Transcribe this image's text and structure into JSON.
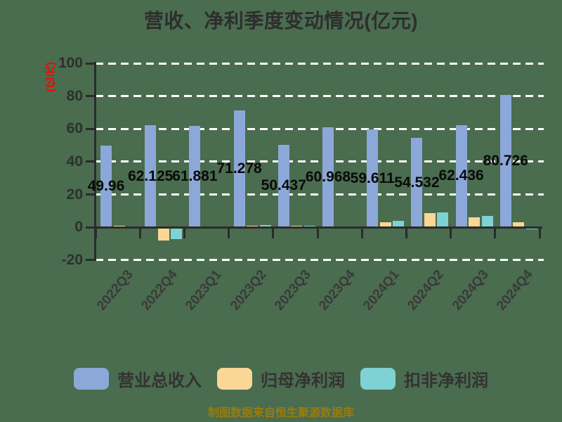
{
  "title": "营收、净利季度变动情况(亿元)",
  "y_axis": {
    "label": "(亿元)",
    "ticks": [
      100,
      80,
      60,
      40,
      20,
      0,
      -20
    ],
    "min": -20,
    "max": 100
  },
  "footer": "制图数据来自恒生聚源数据库",
  "colors": {
    "background": "#4A6C4F",
    "grid": "#FFFFFF",
    "axis": "#2B2B2B",
    "ylabel": "#FF0000",
    "footer_text": "#9B7C0A",
    "revenue_blue": "#8CA8D8",
    "profit_orange": "#FBD795",
    "nongaap_teal": "#7FD2D4"
  },
  "legend": {
    "items": [
      {
        "label": "营业总收入",
        "color": "#8CA8D8"
      },
      {
        "label": "归母净利润",
        "color": "#FBD795"
      },
      {
        "label": "扣非净利润",
        "color": "#7FD2D4"
      }
    ],
    "position": "bottom"
  },
  "chart_data": {
    "type": "bar",
    "title": "营收、净利季度变动情况(亿元)",
    "xlabel": "",
    "ylabel": "(亿元)",
    "ylim": [
      -20,
      100
    ],
    "yticks": [
      100,
      80,
      60,
      40,
      20,
      0,
      -20
    ],
    "grid": "horizontal-white-dashed",
    "legend_position": "bottom",
    "categories": [
      "2022Q3",
      "2022Q4",
      "2023Q1",
      "2023Q2",
      "2023Q3",
      "2023Q4",
      "2024Q1",
      "2024Q2",
      "2024Q3",
      "2024Q4"
    ],
    "series": [
      {
        "name": "营业总收入",
        "color": "#8CA8D8",
        "values": [
          49.96,
          62.125,
          61.881,
          71.278,
          50.437,
          60.968,
          59.611,
          54.532,
          62.436,
          80.726
        ],
        "labels": [
          "49.96",
          "62.125",
          "61.881",
          "71.278",
          "50.437",
          "60.968",
          "59.611",
          "54.532",
          "62.436",
          "80.726"
        ]
      },
      {
        "name": "归母净利润",
        "color": "#FBD795",
        "values": [
          0.8,
          -8.1,
          0.7,
          1.2,
          1.0,
          0.5,
          3.0,
          8.5,
          6.2,
          3.2
        ]
      },
      {
        "name": "扣非净利润",
        "color": "#7FD2D4",
        "values": [
          -0.6,
          -7.2,
          0.7,
          1.4,
          0.9,
          0.4,
          3.9,
          9.3,
          7.0,
          -1.2
        ]
      }
    ]
  }
}
